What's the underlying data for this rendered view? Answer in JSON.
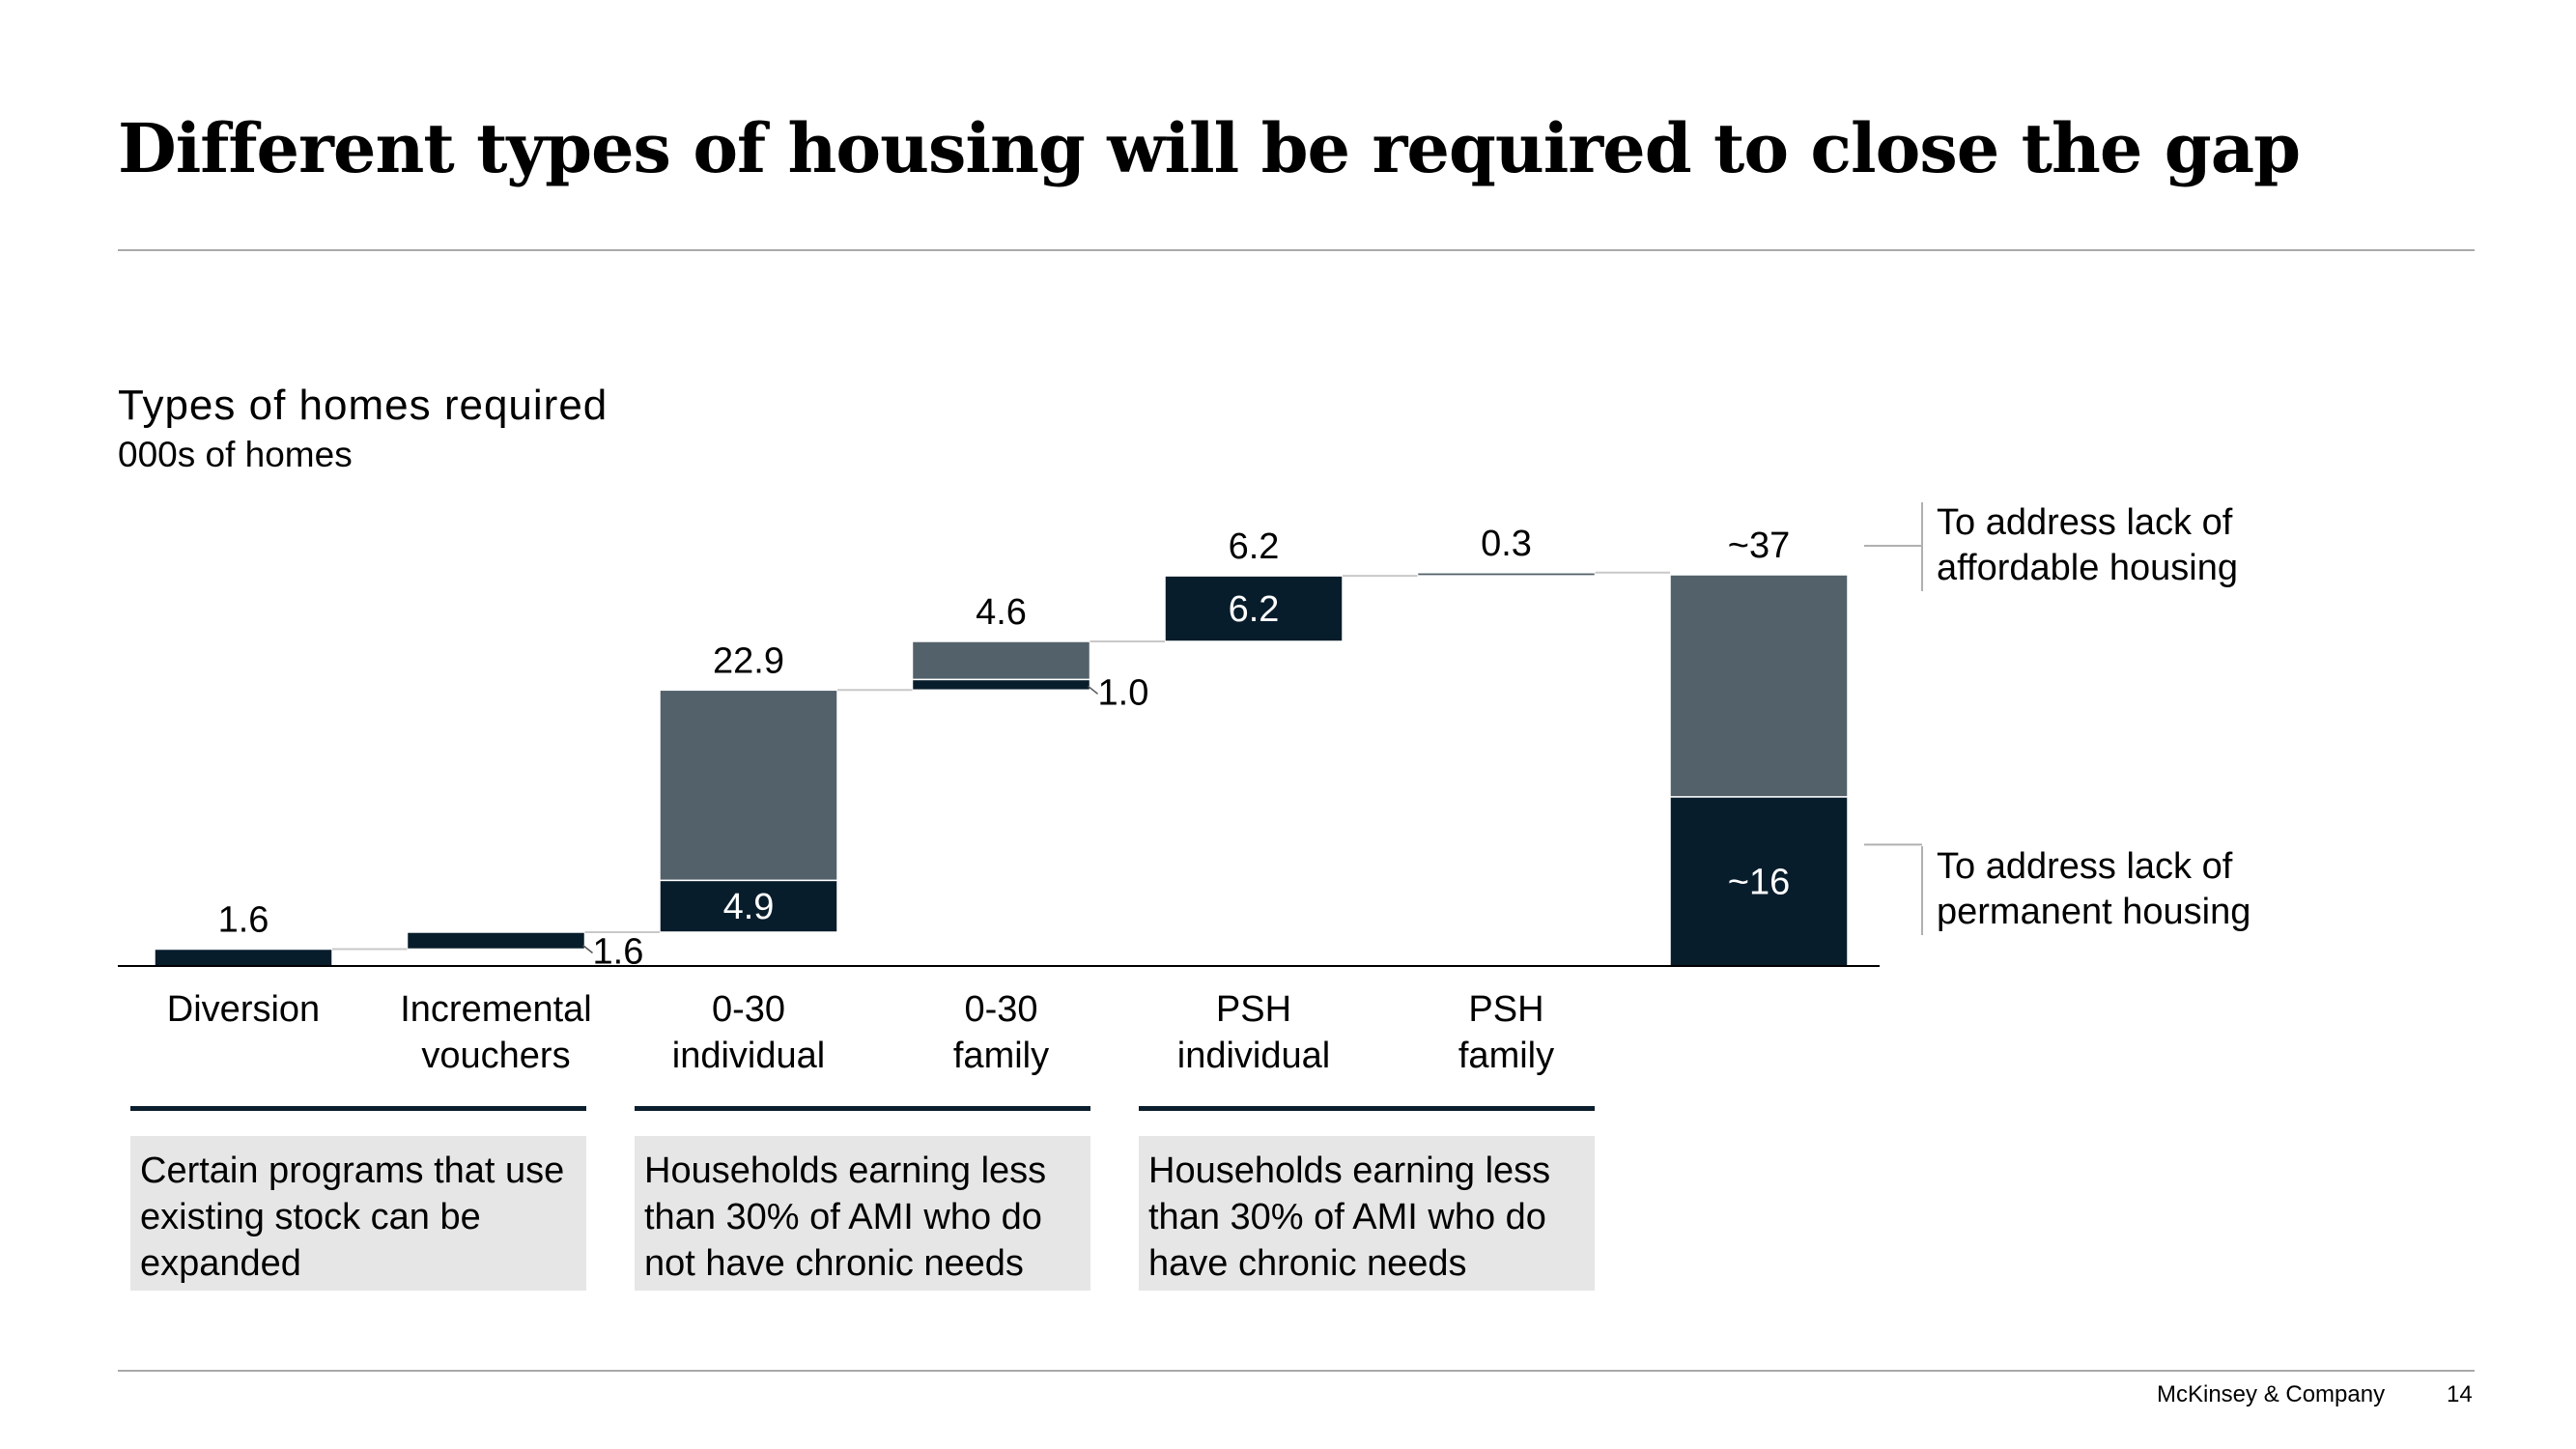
{
  "header": {
    "title": "Different types of housing will be required to close the gap"
  },
  "chart_data": {
    "type": "bar",
    "subtype": "waterfall",
    "title": "Types of homes required",
    "unit": "000s of homes",
    "ylim": [
      0,
      37
    ],
    "colors": {
      "permanent": "#081d2c",
      "affordable": "#53616b",
      "connector": "#c8c8c8",
      "axis": "#000000"
    },
    "bars": [
      {
        "category": "Diversion",
        "segments": [
          {
            "series": "permanent",
            "value": 1.6
          }
        ],
        "total_label": "1.6",
        "segment_labels": [
          ""
        ],
        "side_label": ""
      },
      {
        "category": "Incremental vouchers",
        "segments": [
          {
            "series": "permanent",
            "value": 1.6
          }
        ],
        "total_label": "",
        "segment_labels": [
          ""
        ],
        "side_label": "1.6"
      },
      {
        "category": "0-30 individual",
        "segments": [
          {
            "series": "permanent",
            "value": 4.9
          },
          {
            "series": "affordable",
            "value": 18.0
          }
        ],
        "total_label": "22.9",
        "segment_labels": [
          "4.9",
          ""
        ],
        "side_label": ""
      },
      {
        "category": "0-30 family",
        "segments": [
          {
            "series": "permanent",
            "value": 1.0
          },
          {
            "series": "affordable",
            "value": 3.6
          }
        ],
        "total_label": "4.6",
        "segment_labels": [
          "",
          ""
        ],
        "side_label": "1.0"
      },
      {
        "category": "PSH individual",
        "segments": [
          {
            "series": "permanent",
            "value": 6.2
          }
        ],
        "total_label": "6.2",
        "segment_labels": [
          "6.2"
        ],
        "side_label": ""
      },
      {
        "category": "PSH family",
        "segments": [
          {
            "series": "affordable",
            "value": 0.3
          }
        ],
        "total_label": "0.3",
        "segment_labels": [
          ""
        ],
        "side_label": ""
      },
      {
        "category": "",
        "is_total": true,
        "segments": [
          {
            "series": "permanent",
            "value": 16
          },
          {
            "series": "affordable",
            "value": 21
          }
        ],
        "total_label": "~37",
        "segment_labels": [
          "~16",
          ""
        ],
        "side_label": ""
      }
    ],
    "category_labels": [
      [
        "Diversion"
      ],
      [
        "Incremental",
        "vouchers"
      ],
      [
        "0-30",
        "individual"
      ],
      [
        "0-30",
        "family"
      ],
      [
        "PSH",
        "individual"
      ],
      [
        "PSH",
        "family"
      ],
      []
    ],
    "legend": {
      "affordable": "To address lack of affordable housing",
      "permanent": "To address lack of permanent housing",
      "affordable_lines": [
        "To address lack of",
        "affordable housing"
      ],
      "permanent_lines": [
        "To address lack of",
        "permanent housing"
      ]
    },
    "groups": [
      {
        "text": "Certain programs that use existing stock can be expanded",
        "lines": [
          "Certain programs that use",
          "existing stock can be",
          "expanded"
        ]
      },
      {
        "text": "Households earning less than 30% of AMI who do not have chronic needs",
        "lines": [
          "Households earning less",
          "than 30% of AMI who do",
          "not have chronic needs"
        ]
      },
      {
        "text": "Households earning less than 30% of AMI who do have chronic needs",
        "lines": [
          "Households earning less",
          "than 30% of AMI who do",
          "have chronic needs"
        ]
      }
    ]
  },
  "footer": {
    "brand": "McKinsey & Company",
    "page": "14"
  }
}
